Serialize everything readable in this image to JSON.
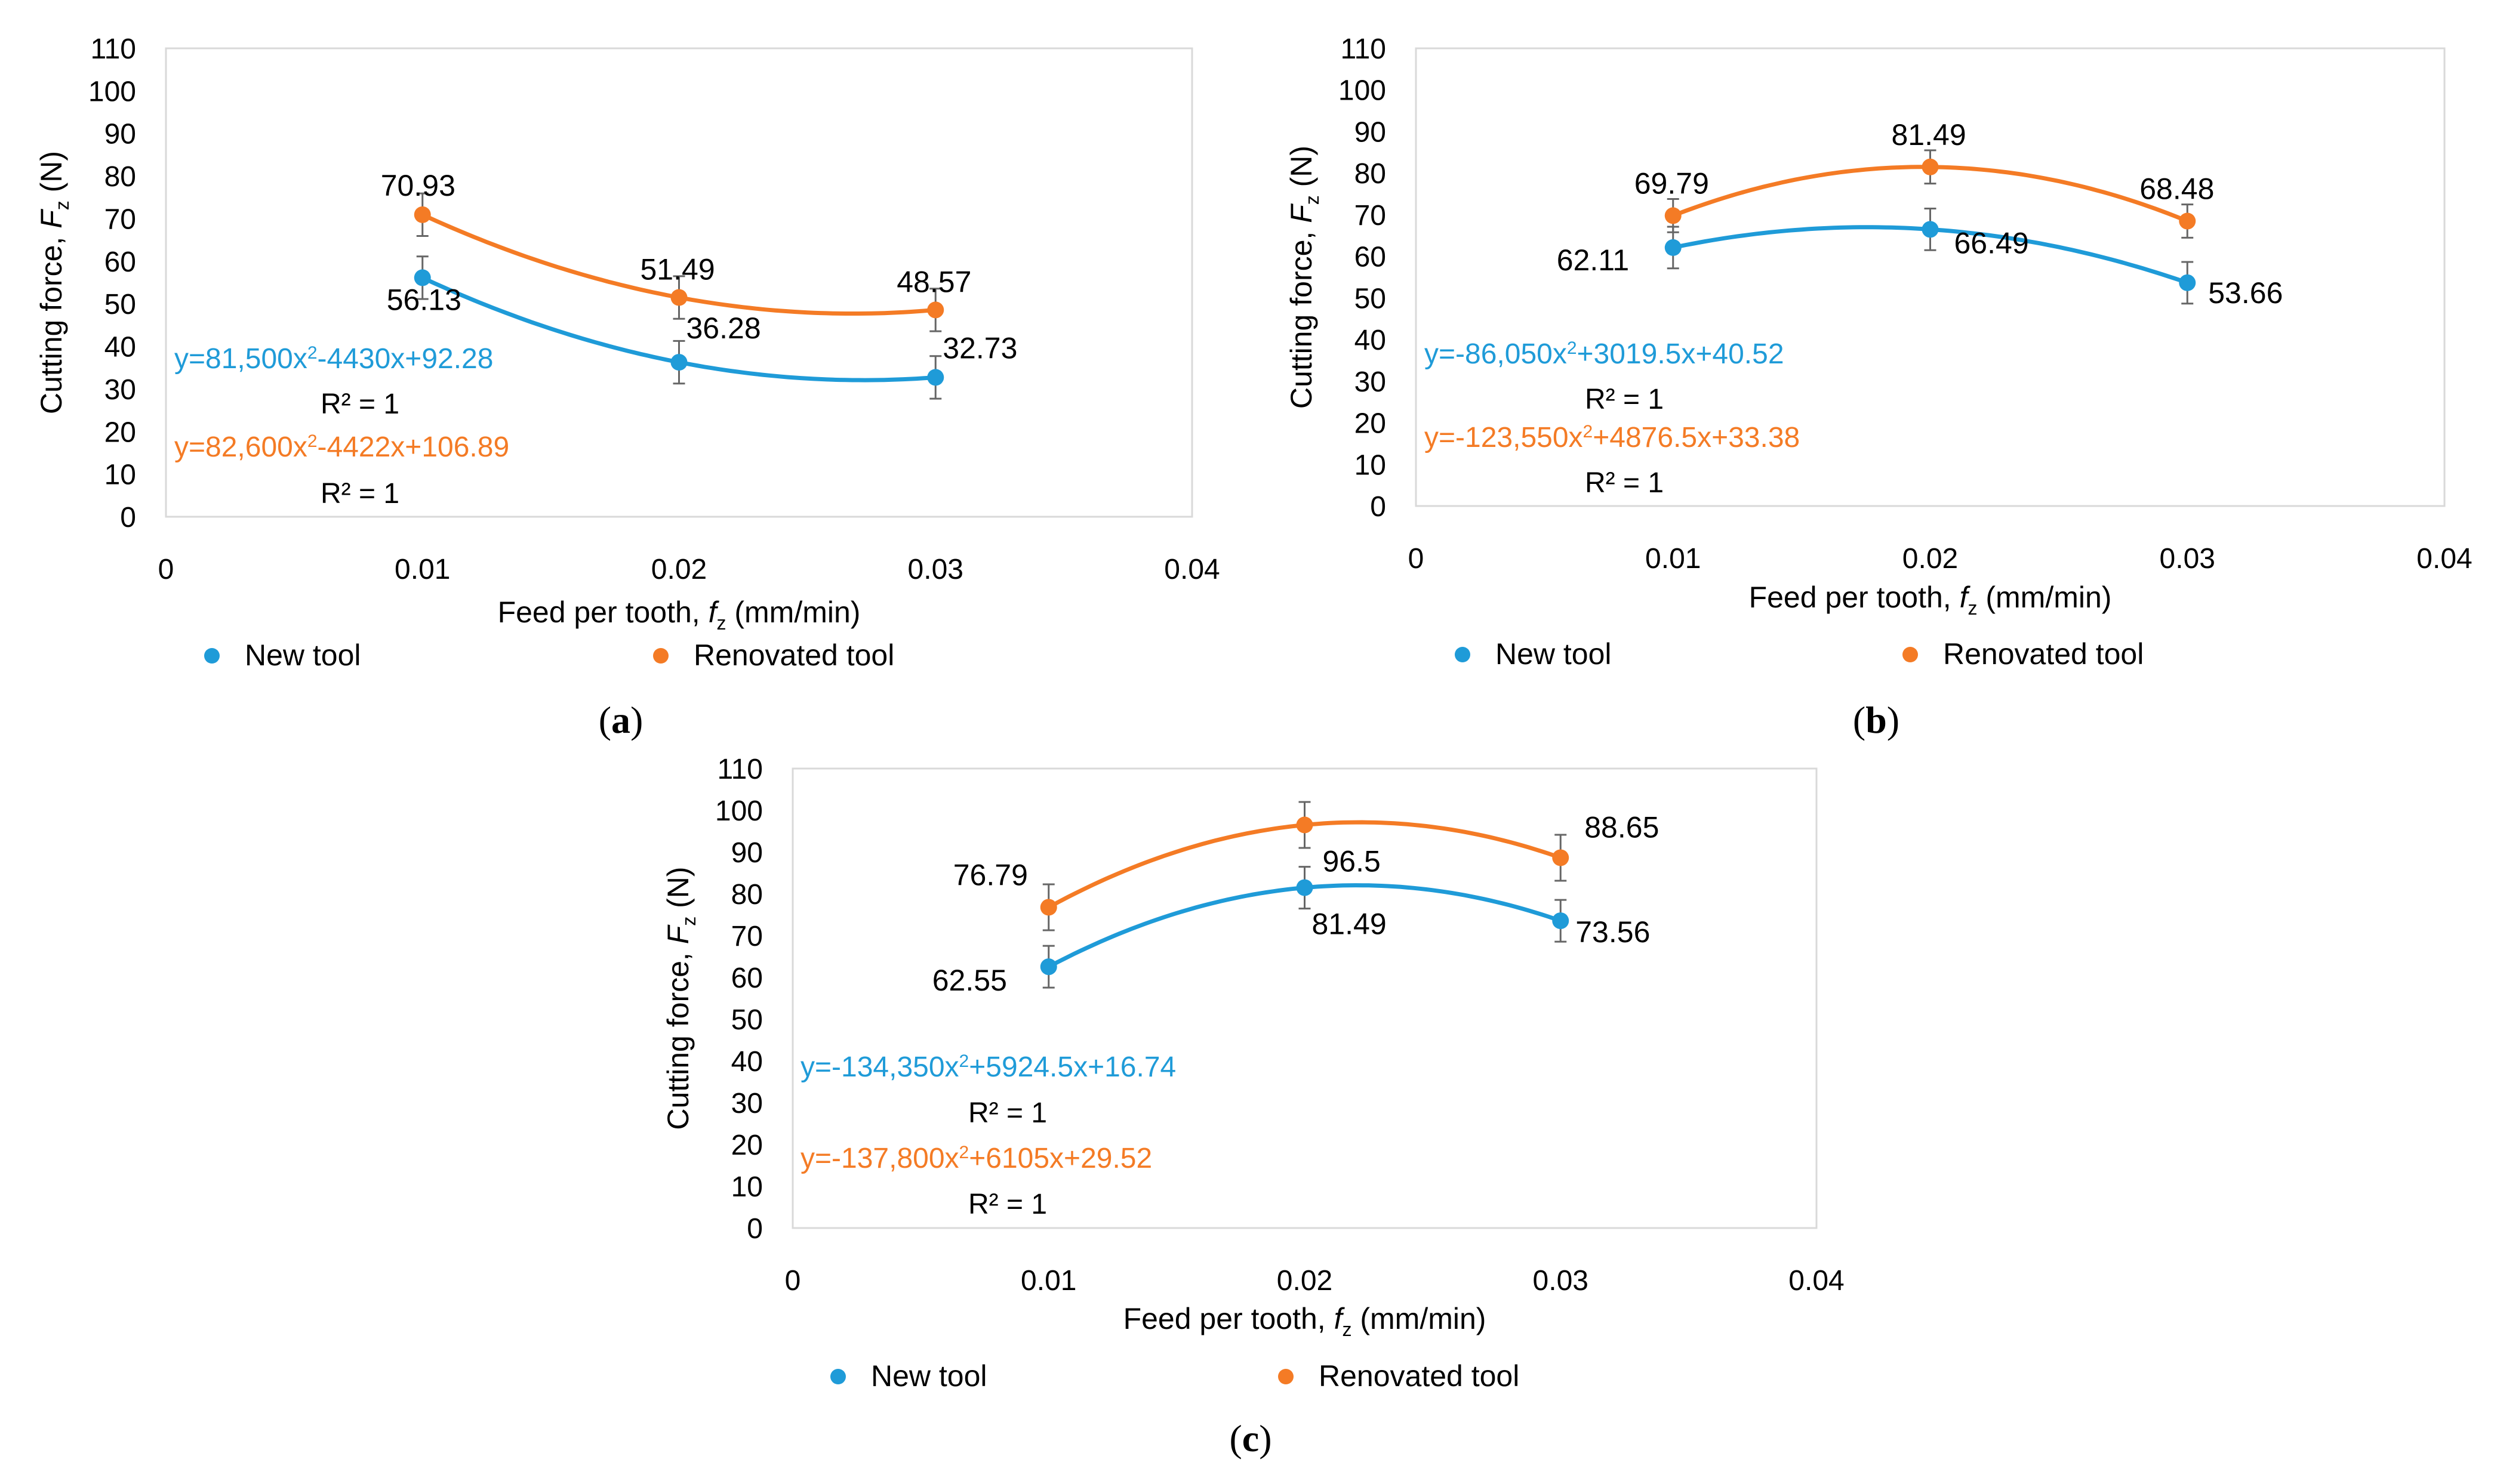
{
  "colors": {
    "new_tool": "#1f9bd8",
    "renovated_tool": "#f47b25",
    "axis": "#d9d9d9",
    "error_bar": "#666666",
    "text": "#000000"
  },
  "shared": {
    "xlabel_prefix": "Feed per tooth, ",
    "xlabel_symbol": "f",
    "xlabel_sub": "z",
    "xlabel_suffix": " (mm/min)",
    "ylabel_prefix": "Cutting force, ",
    "ylabel_symbol": "F",
    "ylabel_sub": "z",
    "ylabel_suffix": " (N)",
    "x_ticks": [
      "0",
      "0.01",
      "0.02",
      "0.03",
      "0.04"
    ],
    "y_ticks": [
      "0",
      "10",
      "20",
      "30",
      "40",
      "50",
      "60",
      "70",
      "80",
      "90",
      "100",
      "110"
    ],
    "legend": [
      "New tool",
      "Renovated tool"
    ],
    "r_squared": "R² = 1"
  },
  "chart_data": [
    {
      "type": "scatter",
      "panel": "a",
      "label": "(a)",
      "xlim": [
        0,
        0.04
      ],
      "ylim": [
        0,
        110
      ],
      "grid": false,
      "legend_position": "bottom",
      "series": [
        {
          "name": "New tool",
          "x": [
            0.01,
            0.02,
            0.03
          ],
          "values": [
            56.13,
            36.28,
            32.73
          ],
          "labels": [
            "56.13",
            "36.28",
            "32.73"
          ],
          "error": 5,
          "trendline": {
            "a": 81500,
            "b": -4430,
            "c": 92.28,
            "equation": "y=81,500x²-4430x+92.28",
            "r2": "R² = 1"
          }
        },
        {
          "name": "Renovated tool",
          "x": [
            0.01,
            0.02,
            0.03
          ],
          "values": [
            70.93,
            51.49,
            48.57
          ],
          "labels": [
            "70.93",
            "51.49",
            "48.57"
          ],
          "error": 5,
          "trendline": {
            "a": 82600,
            "b": -4422,
            "c": 106.89,
            "equation": "y=82,600x²-4422x+106.89",
            "r2": "R² = 1"
          }
        }
      ]
    },
    {
      "type": "scatter",
      "panel": "b",
      "label": "(b)",
      "xlim": [
        0,
        0.04
      ],
      "ylim": [
        0,
        110
      ],
      "grid": false,
      "legend_position": "bottom",
      "series": [
        {
          "name": "New tool",
          "x": [
            0.01,
            0.02,
            0.03
          ],
          "values": [
            62.11,
            66.49,
            53.66
          ],
          "labels": [
            "62.11",
            "66.49",
            "53.66"
          ],
          "error": 5,
          "trendline": {
            "a": -86050,
            "b": 3019.5,
            "c": 40.52,
            "equation": "y=-86,050x²+3019.5x+40.52",
            "r2": "R² = 1"
          }
        },
        {
          "name": "Renovated tool",
          "x": [
            0.01,
            0.02,
            0.03
          ],
          "values": [
            69.79,
            81.49,
            68.48
          ],
          "labels": [
            "69.79",
            "81.49",
            "68.48"
          ],
          "error": 4,
          "trendline": {
            "a": -123550,
            "b": 4876.5,
            "c": 33.38,
            "equation": "y=-123,550x²+4876.5x+33.38",
            "r2": "R² = 1"
          }
        }
      ]
    },
    {
      "type": "scatter",
      "panel": "c",
      "label": "(c)",
      "xlim": [
        0,
        0.04
      ],
      "ylim": [
        0,
        110
      ],
      "grid": false,
      "legend_position": "bottom",
      "series": [
        {
          "name": "New tool",
          "x": [
            0.01,
            0.02,
            0.03
          ],
          "values": [
            62.55,
            81.49,
            73.56
          ],
          "labels": [
            "62.55",
            "81.49",
            "73.56"
          ],
          "error": 5,
          "trendline": {
            "a": -134350,
            "b": 5924.5,
            "c": 16.74,
            "equation": "y=-134,350x²+5924.5x+16.74",
            "r2": "R² = 1"
          }
        },
        {
          "name": "Renovated tool",
          "x": [
            0.01,
            0.02,
            0.03
          ],
          "values": [
            76.79,
            96.5,
            88.65
          ],
          "labels": [
            "76.79",
            "96.5",
            "88.65"
          ],
          "error": 5.5,
          "trendline": {
            "a": -137800,
            "b": 6105,
            "c": 29.52,
            "equation": "y=-137,800x²+6105x+29.52",
            "r2": "R² = 1"
          }
        }
      ]
    }
  ]
}
